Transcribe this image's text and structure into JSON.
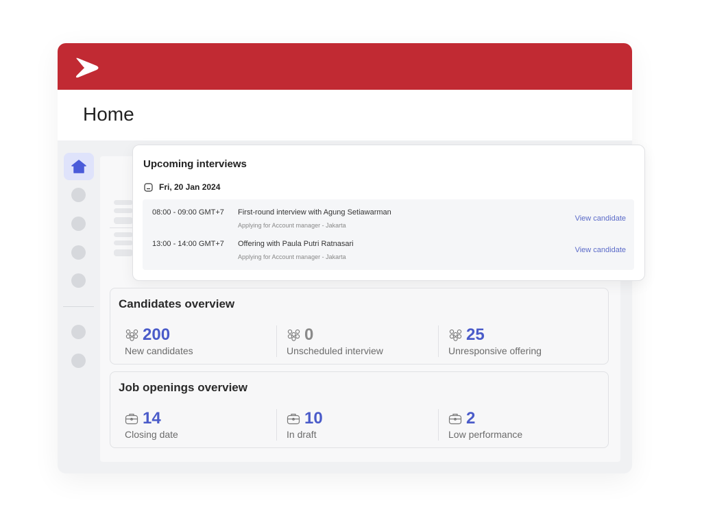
{
  "app": {
    "brand_color": "#c12a33",
    "accent_color": "#4a5bc9",
    "logo_icon": "chevron-right-logo"
  },
  "page": {
    "title": "Home"
  },
  "sidebar": {
    "items": [
      {
        "icon": "home-icon",
        "active": true
      }
    ]
  },
  "upcoming": {
    "title": "Upcoming interviews",
    "date": "Fri, 20 Jan 2024",
    "rows": [
      {
        "time": "08:00 - 09:00 GMT+7",
        "title": "First-round interview with Agung Setiawarman",
        "subtitle": "Applying for Account manager - Jakarta",
        "link": "View candidate"
      },
      {
        "time": "13:00 - 14:00 GMT+7",
        "title": "Offering with Paula Putri Ratnasari",
        "subtitle": "Applying for Account manager - Jakarta",
        "link": "View candidate"
      }
    ]
  },
  "candidates": {
    "title": "Candidates overview",
    "stats": [
      {
        "value": "200",
        "label": "New candidates"
      },
      {
        "value": "0",
        "label": "Unscheduled interview"
      },
      {
        "value": "25",
        "label": "Unresponsive offering"
      }
    ]
  },
  "jobs": {
    "title": "Job openings overview",
    "stats": [
      {
        "value": "14",
        "label": "Closing date"
      },
      {
        "value": "10",
        "label": "In draft"
      },
      {
        "value": "2",
        "label": "Low performance"
      }
    ]
  }
}
